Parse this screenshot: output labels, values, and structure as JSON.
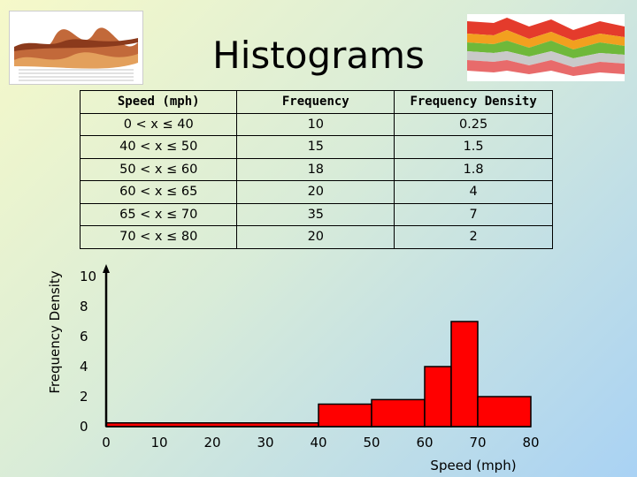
{
  "title": "Histograms",
  "table": {
    "headers": [
      "Speed (mph)",
      "Frequency",
      "Frequency Density"
    ],
    "rows": [
      [
        "0 < x ≤ 40",
        "10",
        "0.25"
      ],
      [
        "40 < x ≤ 50",
        "15",
        "1.5"
      ],
      [
        "50 < x ≤ 60",
        "18",
        "1.8"
      ],
      [
        "60 < x ≤ 65",
        "20",
        "4"
      ],
      [
        "65 < x ≤ 70",
        "35",
        "7"
      ],
      [
        "70 < x ≤ 80",
        "20",
        "2"
      ]
    ]
  },
  "chart_data": {
    "type": "bar",
    "xlabel": "Speed (mph)",
    "ylabel": "Frequency Density",
    "xlim": [
      0,
      80
    ],
    "ylim": [
      0,
      10
    ],
    "xticks": [
      0,
      10,
      20,
      30,
      40,
      50,
      60,
      70,
      80
    ],
    "yticks": [
      0,
      2,
      4,
      6,
      8,
      10
    ],
    "bins": [
      {
        "x0": 0,
        "x1": 40,
        "value": 0.25
      },
      {
        "x0": 40,
        "x1": 50,
        "value": 1.5
      },
      {
        "x0": 50,
        "x1": 60,
        "value": 1.8
      },
      {
        "x0": 60,
        "x1": 65,
        "value": 4
      },
      {
        "x0": 65,
        "x1": 70,
        "value": 7
      },
      {
        "x0": 70,
        "x1": 80,
        "value": 2
      }
    ],
    "bar_color": "#ff0000"
  }
}
